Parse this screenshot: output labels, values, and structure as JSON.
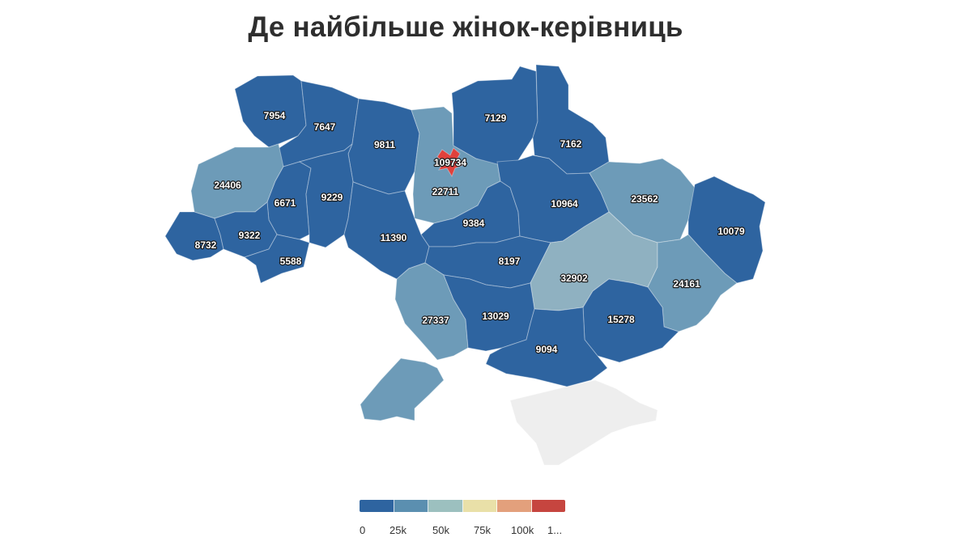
{
  "title": "Де найбільше жінок-керівниць",
  "colors": {
    "dark": "#2e64a0",
    "mid": "#6d9bb8",
    "light": "#8fb1c1",
    "capital_marker": "#e0413c",
    "crimea": "#eeeeee"
  },
  "regions": [
    {
      "key": "volyn",
      "value": "7954",
      "shade": "dark"
    },
    {
      "key": "rivne",
      "value": "7647",
      "shade": "dark"
    },
    {
      "key": "zhytomyr",
      "value": "9811",
      "shade": "dark"
    },
    {
      "key": "kyiv_city",
      "value": "109734",
      "shade": "capital"
    },
    {
      "key": "kyiv_oblast",
      "value": "22711",
      "shade": "mid"
    },
    {
      "key": "chernihiv",
      "value": "7129",
      "shade": "dark"
    },
    {
      "key": "sumy",
      "value": "7162",
      "shade": "dark"
    },
    {
      "key": "lviv",
      "value": "24406",
      "shade": "mid"
    },
    {
      "key": "ternopil",
      "value": "6671",
      "shade": "dark"
    },
    {
      "key": "khmelnytskyi",
      "value": "9229",
      "shade": "dark"
    },
    {
      "key": "cherkasy",
      "value": "9384",
      "shade": "dark"
    },
    {
      "key": "poltava",
      "value": "10964",
      "shade": "dark"
    },
    {
      "key": "kharkiv",
      "value": "23562",
      "shade": "mid"
    },
    {
      "key": "luhansk",
      "value": "10079",
      "shade": "dark"
    },
    {
      "key": "zakarpattia",
      "value": "8732",
      "shade": "dark"
    },
    {
      "key": "ivano_frankivsk",
      "value": "9322",
      "shade": "dark"
    },
    {
      "key": "chernivtsi",
      "value": "5588",
      "shade": "dark"
    },
    {
      "key": "vinnytsia",
      "value": "11390",
      "shade": "dark"
    },
    {
      "key": "kirovohrad",
      "value": "8197",
      "shade": "dark"
    },
    {
      "key": "dnipro",
      "value": "32902",
      "shade": "light"
    },
    {
      "key": "donetsk",
      "value": "24161",
      "shade": "mid"
    },
    {
      "key": "odesa",
      "value": "27337",
      "shade": "mid"
    },
    {
      "key": "mykolaiv",
      "value": "13029",
      "shade": "dark"
    },
    {
      "key": "zaporizhzhia",
      "value": "15278",
      "shade": "dark"
    },
    {
      "key": "kherson",
      "value": "9094",
      "shade": "dark"
    }
  ],
  "legend": {
    "colors": [
      "#2e64a0",
      "#5b8fb0",
      "#9cc0bf",
      "#e9e0a8",
      "#e3a07c",
      "#c6453f"
    ],
    "ticks": [
      "0",
      "25k",
      "50k",
      "75k",
      "100k",
      "1..."
    ]
  }
}
